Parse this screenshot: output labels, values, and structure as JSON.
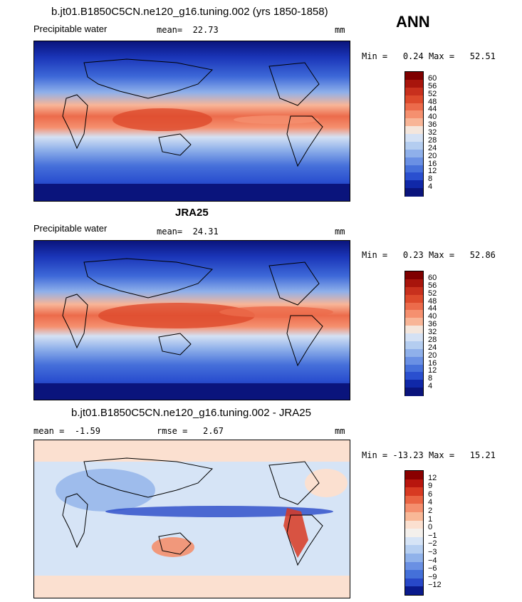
{
  "season": "ANN",
  "panels": [
    {
      "title": "b.jt01.B1850C5CN.ne120_g16.tuning.002 (yrs 1850-1858)",
      "left_label": "Precipitable water",
      "stat1_label": "mean=",
      "stat1_value": "22.73",
      "stat2_label": "",
      "stat2_value": "",
      "units": "mm",
      "min_label": "Min =",
      "min_value": "0.24",
      "max_label": "Max =",
      "max_value": "52.51",
      "levels": [
        "60",
        "56",
        "52",
        "48",
        "44",
        "40",
        "36",
        "32",
        "28",
        "24",
        "20",
        "16",
        "12",
        "8",
        "4"
      ],
      "colors": [
        "#7f0000",
        "#a8150c",
        "#c8301d",
        "#dd4a2c",
        "#ec6b4b",
        "#f5906f",
        "#f8b597",
        "#f4e6dc",
        "#d4e1f4",
        "#b4cdf0",
        "#8fb0ea",
        "#6a90e4",
        "#4670da",
        "#2a4fcf",
        "#1028a8",
        "#0a147c"
      ]
    },
    {
      "title": "JRA25",
      "left_label": "Precipitable water",
      "stat1_label": "mean=",
      "stat1_value": "24.31",
      "stat2_label": "",
      "stat2_value": "",
      "units": "mm",
      "min_label": "Min =",
      "min_value": "0.23",
      "max_label": "Max =",
      "max_value": "52.86",
      "levels": [
        "60",
        "56",
        "52",
        "48",
        "44",
        "40",
        "36",
        "32",
        "28",
        "24",
        "20",
        "16",
        "12",
        "8",
        "4"
      ],
      "colors": [
        "#7f0000",
        "#a8150c",
        "#c8301d",
        "#dd4a2c",
        "#ec6b4b",
        "#f5906f",
        "#f8b597",
        "#f4e6dc",
        "#d4e1f4",
        "#b4cdf0",
        "#8fb0ea",
        "#6a90e4",
        "#4670da",
        "#2a4fcf",
        "#1028a8",
        "#0a147c"
      ]
    },
    {
      "title": "b.jt01.B1850C5CN.ne120_g16.tuning.002 - JRA25",
      "left_label": "",
      "stat1_label": "mean =",
      "stat1_value": "-1.59",
      "stat2_label": "rmse =",
      "stat2_value": "2.67",
      "units": "mm",
      "min_label": "Min =",
      "min_value": "-13.23",
      "max_label": "Max =",
      "max_value": "15.21",
      "levels": [
        "12",
        "9",
        "6",
        "4",
        "2",
        "1",
        "0",
        "−1",
        "−2",
        "−3",
        "−4",
        "−6",
        "−9",
        "−12"
      ],
      "colors": [
        "#8a0000",
        "#b8160e",
        "#d83a22",
        "#ea6443",
        "#f48f6e",
        "#f8b897",
        "#fbe0d0",
        "#f4f0ec",
        "#d6e4f6",
        "#b6cff1",
        "#90b2ea",
        "#6a90e3",
        "#4470d9",
        "#2848c8",
        "#0a1a8c"
      ]
    }
  ]
}
